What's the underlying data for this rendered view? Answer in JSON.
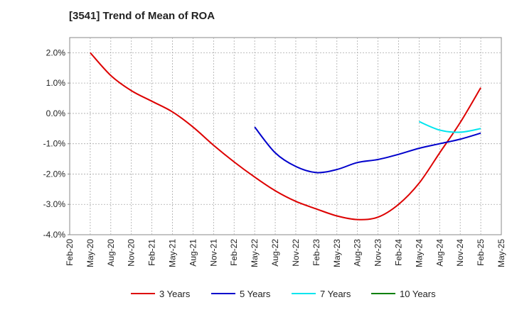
{
  "chart_data": {
    "type": "line",
    "title": "[3541]  Trend of Mean of ROA",
    "xlabel": "",
    "ylabel": "",
    "ylim": [
      -4.0,
      2.5
    ],
    "yticks": [
      2.0,
      1.0,
      0.0,
      -1.0,
      -2.0,
      -3.0,
      -4.0
    ],
    "ytick_labels": [
      "2.0%",
      "1.0%",
      "0.0%",
      "-1.0%",
      "-2.0%",
      "-3.0%",
      "-4.0%"
    ],
    "x_tick_labels": [
      "Feb-20",
      "May-20",
      "Aug-20",
      "Nov-20",
      "Feb-21",
      "May-21",
      "Aug-21",
      "Nov-21",
      "Feb-22",
      "May-22",
      "Aug-22",
      "Nov-22",
      "Feb-23",
      "May-23",
      "Aug-23",
      "Nov-23",
      "Feb-24",
      "May-24",
      "Aug-24",
      "Nov-24",
      "Feb-25",
      "May-25"
    ],
    "grid": true,
    "legend_position": "bottom",
    "series": [
      {
        "name": "3 Years",
        "color": "#dd0000",
        "x": [
          "May-20",
          "Aug-20",
          "Nov-20",
          "Feb-21",
          "May-21",
          "Aug-21",
          "Nov-21",
          "Feb-22",
          "May-22",
          "Aug-22",
          "Nov-22",
          "Feb-23",
          "May-23",
          "Aug-23",
          "Nov-23",
          "Feb-24",
          "May-24",
          "Aug-24",
          "Nov-24",
          "Feb-25"
        ],
        "values": [
          2.0,
          1.25,
          0.75,
          0.4,
          0.05,
          -0.45,
          -1.05,
          -1.6,
          -2.1,
          -2.55,
          -2.9,
          -3.15,
          -3.38,
          -3.5,
          -3.42,
          -3.0,
          -2.3,
          -1.3,
          -0.3,
          0.85
        ]
      },
      {
        "name": "5 Years",
        "color": "#0000cc",
        "x": [
          "May-22",
          "Aug-22",
          "Nov-22",
          "Feb-23",
          "May-23",
          "Aug-23",
          "Nov-23",
          "Feb-24",
          "May-24",
          "Aug-24",
          "Nov-24",
          "Feb-25"
        ],
        "values": [
          -0.45,
          -1.3,
          -1.75,
          -1.95,
          -1.85,
          -1.62,
          -1.52,
          -1.35,
          -1.15,
          -1.0,
          -0.85,
          -0.65
        ]
      },
      {
        "name": "7 Years",
        "color": "#00e5ee",
        "x": [
          "May-24",
          "Aug-24",
          "Nov-24",
          "Feb-25"
        ],
        "values": [
          -0.27,
          -0.55,
          -0.62,
          -0.5
        ]
      },
      {
        "name": "10 Years",
        "color": "#008000",
        "x": [],
        "values": []
      }
    ]
  }
}
